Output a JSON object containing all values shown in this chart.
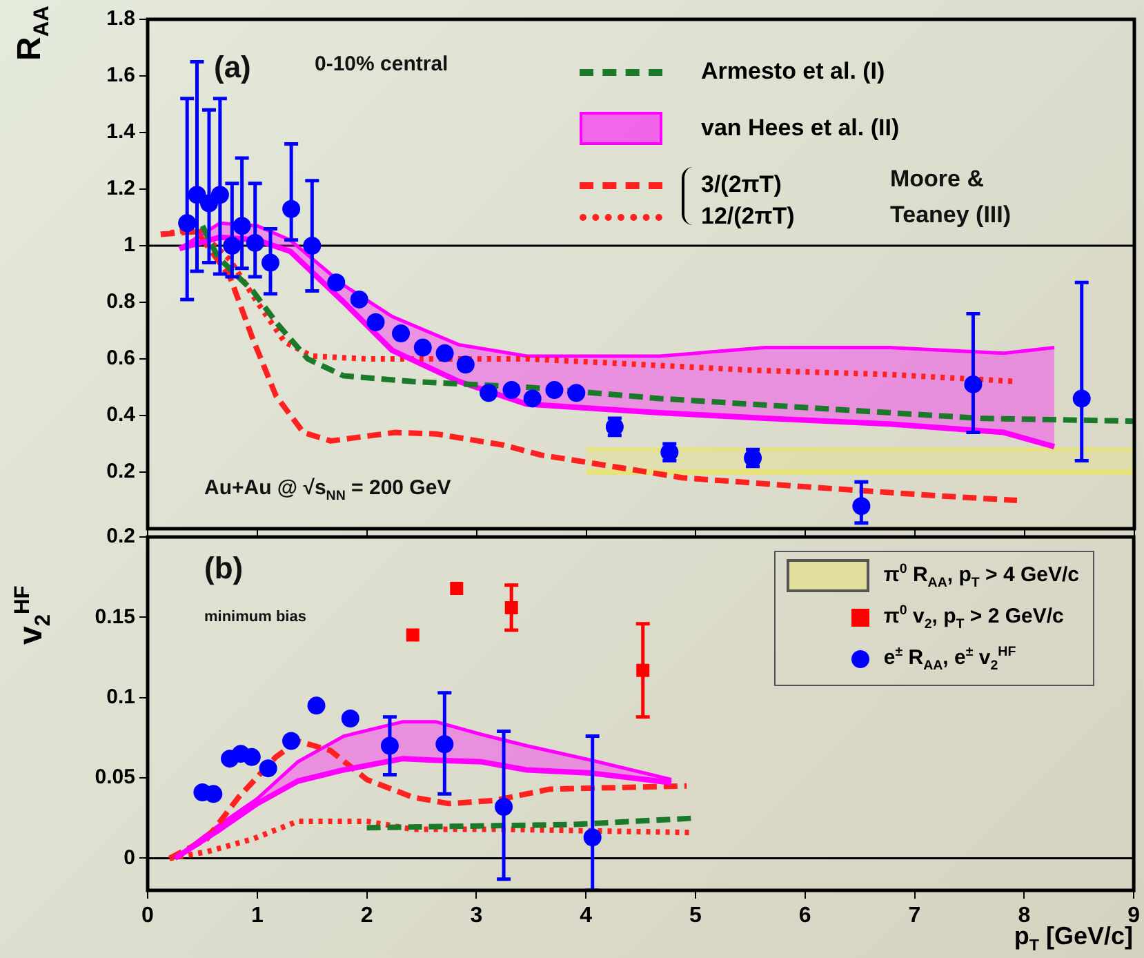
{
  "chart_data": [
    {
      "type": "line",
      "ylabel": "R$_{AA}$",
      "xlim": [
        0,
        9
      ],
      "xticks": [
        0,
        1,
        2,
        3,
        4,
        5,
        6,
        7,
        8,
        9
      ],
      "ylim": [
        0,
        1.8
      ],
      "yticks": [
        0.2,
        0.4,
        0.6,
        0.8,
        1,
        1.2,
        1.4,
        1.6,
        1.8
      ],
      "tick_labels": "y",
      "grid": false,
      "legend": "right",
      "annotations": [
        "(a)",
        "0-10% central",
        "Moore & Teaney (III)",
        "Au+Au @ √s$_{NN}$ = 200 GeV"
      ],
      "ref_lines": [
        {
          "axis": "y",
          "value": 1
        }
      ],
      "series": [
        {
          "name": "Armesto et al. (I)",
          "type": "line",
          "color": "#1a7a2a",
          "line_style": "dashed",
          "marker": "none",
          "x": [
            0.5,
            0.64,
            0.96,
            1.17,
            1.46,
            1.79,
            2.42,
            3.46,
            4.67,
            6.34,
            7.6,
            9
          ],
          "values": [
            1.07,
            0.96,
            0.84,
            0.73,
            0.6,
            0.54,
            0.52,
            0.5,
            0.46,
            0.42,
            0.39,
            0.38
          ]
        },
        {
          "name": "van Hees et al. (II)",
          "type": "area",
          "color": "#ff00ff",
          "x": [
            0.29,
            0.66,
            1.0,
            1.3,
            1.79,
            2.23,
            2.84,
            3.46,
            4.67,
            5.63,
            6.76,
            7.81,
            8.27
          ],
          "values": [
            0.99,
            1.08,
            1.07,
            1.02,
            0.86,
            0.75,
            0.65,
            0.61,
            0.61,
            0.64,
            0.64,
            0.62,
            0.64
          ]
        },
        {
          "type": "line",
          "color": "#ff00ff",
          "line_style": "solid",
          "marker": "none",
          "x": [
            0.29,
            0.66,
            1.0,
            1.3,
            1.79,
            2.23,
            2.84,
            3.46,
            4.67,
            5.63,
            6.76,
            7.81,
            8.27
          ],
          "values": [
            0.99,
            1.03,
            1.02,
            0.98,
            0.8,
            0.63,
            0.52,
            0.44,
            0.41,
            0.39,
            0.37,
            0.34,
            0.29
          ]
        },
        {
          "name": "3/(2πT)",
          "type": "line",
          "color": "#ff2020",
          "line_style": "dashed",
          "marker": "none",
          "x": [
            0.12,
            0.45,
            0.75,
            0.96,
            1.17,
            1.42,
            1.67,
            2.25,
            2.63,
            3.25,
            3.59,
            3.84,
            4.88,
            5.93,
            7.18,
            7.93
          ],
          "values": [
            1.04,
            1.05,
            0.89,
            0.67,
            0.47,
            0.34,
            0.31,
            0.34,
            0.335,
            0.295,
            0.26,
            0.245,
            0.18,
            0.15,
            0.117,
            0.1
          ]
        },
        {
          "name": "12/(2πT)",
          "type": "line",
          "color": "#ff2020",
          "line_style": "dotted",
          "marker": "none",
          "x": [
            0.12,
            0.45,
            0.75,
            1.0,
            1.25,
            1.5,
            2.0,
            3.0,
            3.46,
            4.26,
            5.51,
            6.76,
            7.93
          ],
          "values": [
            1.04,
            1.06,
            0.95,
            0.8,
            0.66,
            0.61,
            0.6,
            0.6,
            0.6,
            0.585,
            0.56,
            0.545,
            0.52
          ]
        },
        {
          "type": "scatter",
          "color": "#0000ff",
          "marker": "circle",
          "x": [
            0.36,
            0.45,
            0.56,
            0.66,
            0.77,
            0.86,
            0.98,
            1.12,
            1.31,
            1.5,
            1.72,
            1.93,
            2.08,
            2.31,
            2.51,
            2.71,
            2.9,
            3.11,
            3.32,
            3.51,
            3.71,
            3.91,
            4.26,
            4.76,
            5.52,
            6.51,
            7.53,
            8.52
          ],
          "values": [
            1.08,
            1.18,
            1.15,
            1.18,
            1.0,
            1.07,
            1.01,
            0.94,
            1.13,
            1.0,
            0.87,
            0.81,
            0.73,
            0.69,
            0.64,
            0.62,
            0.58,
            0.48,
            0.49,
            0.46,
            0.49,
            0.48,
            0.36,
            0.27,
            0.25,
            0.08,
            0.51,
            0.46
          ],
          "errors": [
            [
              0.81,
              1.52
            ],
            [
              0.91,
              1.65
            ],
            [
              0.94,
              1.48
            ],
            [
              0.9,
              1.52
            ],
            [
              0.89,
              1.22
            ],
            [
              0.92,
              1.31
            ],
            [
              0.89,
              1.22
            ],
            [
              0.83,
              1.06
            ],
            [
              1.02,
              1.36
            ],
            [
              0.84,
              1.23
            ],
            null,
            null,
            null,
            null,
            null,
            null,
            null,
            null,
            null,
            null,
            null,
            null,
            [
              0.33,
              0.39
            ],
            [
              0.24,
              0.3
            ],
            [
              0.22,
              0.28
            ],
            [
              0.02,
              0.165
            ],
            [
              0.34,
              0.76
            ],
            [
              0.24,
              0.87
            ]
          ]
        },
        {
          "name": "π$^{0}$ R$_{AA}$, p$_{T}$ > 4 GeV/c",
          "type": "area",
          "color": "#e8e27a",
          "x": [
            4,
            9
          ],
          "values": [
            0.28,
            0.28
          ]
        },
        {
          "type": "line",
          "color": "#e8e27a",
          "line_style": "solid",
          "marker": "none",
          "x": [
            4,
            9
          ],
          "values": [
            0.2,
            0.2
          ]
        }
      ]
    },
    {
      "type": "line",
      "ylabel": "v$_{2}$$^{HF}$",
      "xlabel": "p$_{T}$ [GeV/c]",
      "xlim": [
        0,
        9
      ],
      "xticks": [
        0,
        1,
        2,
        3,
        4,
        5,
        6,
        7,
        8,
        9
      ],
      "ylim": [
        -0.02,
        0.2
      ],
      "yticks": [
        0,
        0.05,
        0.1,
        0.15,
        0.2
      ],
      "grid": false,
      "legend": "top right",
      "annotations": [
        "(b)",
        "minimum bias"
      ],
      "ref_lines": [
        {
          "axis": "y",
          "value": 0
        }
      ],
      "series": [
        {
          "type": "line",
          "color": "#1a7a2a",
          "line_style": "dashed",
          "marker": "none",
          "x": [
            2.0,
            3.88,
            5.0
          ],
          "values": [
            0.019,
            0.021,
            0.025
          ]
        },
        {
          "type": "area",
          "color": "#ff00ff",
          "x": [
            0.25,
            0.66,
            1.0,
            1.37,
            1.79,
            2.33,
            2.63,
            3.05,
            3.46,
            4.05,
            4.78
          ],
          "values": [
            0,
            0.021,
            0.037,
            0.06,
            0.076,
            0.085,
            0.085,
            0.077,
            0.07,
            0.061,
            0.049
          ]
        },
        {
          "type": "line",
          "color": "#ff00ff",
          "line_style": "solid",
          "marker": "none",
          "x": [
            0.25,
            0.66,
            1.0,
            1.37,
            1.79,
            2.33,
            2.63,
            3.05,
            3.46,
            4.05,
            4.78
          ],
          "values": [
            0,
            0.018,
            0.034,
            0.048,
            0.055,
            0.062,
            0.061,
            0.06,
            0.055,
            0.053,
            0.047
          ]
        },
        {
          "type": "line",
          "color": "#ff2020",
          "line_style": "dashed",
          "marker": "none",
          "x": [
            0.2,
            0.54,
            0.83,
            1.17,
            1.37,
            1.67,
            2.0,
            2.42,
            2.75,
            3.17,
            3.67,
            4.92
          ],
          "values": [
            0,
            0.012,
            0.038,
            0.063,
            0.073,
            0.067,
            0.049,
            0.038,
            0.034,
            0.036,
            0.043,
            0.045
          ]
        },
        {
          "type": "line",
          "color": "#ff2020",
          "line_style": "dotted",
          "marker": "none",
          "x": [
            0.2,
            0.54,
            0.96,
            1.37,
            2.0,
            2.42,
            3.25,
            4.09,
            4.97
          ],
          "values": [
            0,
            0.004,
            0.012,
            0.023,
            0.023,
            0.018,
            0.018,
            0.017,
            0.016
          ]
        },
        {
          "name": "π$^{0}$ v$_{2}$, p$_{T}$ > 2 GeV/c",
          "type": "scatter",
          "color": "#ff0000",
          "marker": "square",
          "x": [
            2.42,
            2.82,
            3.32,
            4.52
          ],
          "values": [
            0.139,
            0.168,
            0.156,
            0.117
          ],
          "errors": [
            null,
            null,
            [
              0.142,
              0.17
            ],
            [
              0.088,
              0.146
            ]
          ]
        },
        {
          "name": "e$^{±}$ R$_{AA}$, e$^{±}$ v$_{2}$$^{HF}$",
          "type": "scatter",
          "color": "#0000ff",
          "marker": "circle",
          "x": [
            0.5,
            0.6,
            0.75,
            0.85,
            0.95,
            1.1,
            1.31,
            1.54,
            1.85,
            2.21,
            2.71,
            3.25,
            4.06
          ],
          "values": [
            0.041,
            0.04,
            0.062,
            0.065,
            0.063,
            0.056,
            0.073,
            0.095,
            0.087,
            0.07,
            0.071,
            0.032,
            0.013
          ],
          "errors": [
            null,
            null,
            null,
            null,
            null,
            null,
            null,
            null,
            null,
            [
              0.052,
              0.088
            ],
            [
              0.04,
              0.103
            ],
            [
              -0.013,
              0.079
            ],
            [
              -0.02,
              0.076
            ]
          ]
        }
      ]
    }
  ]
}
